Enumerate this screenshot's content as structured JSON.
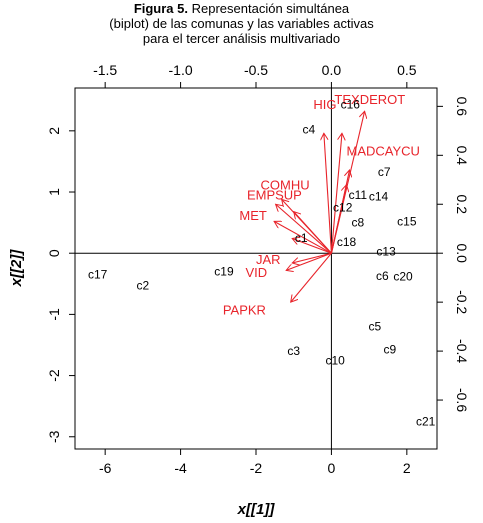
{
  "figure": {
    "label": "Figura 5.",
    "title_line1": "Representación simultánea",
    "title_line2": "(biplot) de las comunas y las variables activas",
    "title_line3": "para el tercer análisis multivariado"
  },
  "chart_data": {
    "type": "scatter",
    "subtype": "biplot",
    "xlabel": "x[[1]]",
    "ylabel": "x[[2]]",
    "xlim": [
      -6.8,
      2.8
    ],
    "ylim": [
      -3.2,
      2.7
    ],
    "x_ticks": [
      -6,
      -4,
      -2,
      0,
      2
    ],
    "y_ticks": [
      -3,
      -2,
      -1,
      0,
      1,
      2
    ],
    "top_axis": {
      "lim": [
        -1.7,
        0.7
      ],
      "ticks": [
        "-1.5",
        "-1.0",
        "-0.5",
        "0.0",
        "0.5"
      ],
      "tick_values": [
        -1.5,
        -1.0,
        -0.5,
        0.0,
        0.5
      ]
    },
    "right_axis": {
      "lim": [
        -0.8,
        0.675
      ],
      "ticks": [
        "0.6",
        "0.4",
        "0.2",
        "0.0",
        "-0.2",
        "-0.4",
        "-0.6"
      ],
      "tick_values": [
        0.6,
        0.4,
        0.2,
        0.0,
        -0.2,
        -0.4,
        -0.6
      ]
    },
    "reference_lines": {
      "x": 0,
      "y": 0
    },
    "points": [
      {
        "label": "c1",
        "x": -0.8,
        "y": 0.25
      },
      {
        "label": "c2",
        "x": -5.0,
        "y": -0.53
      },
      {
        "label": "c3",
        "x": -1.0,
        "y": -1.6
      },
      {
        "label": "c4",
        "x": -0.6,
        "y": 2.02
      },
      {
        "label": "c5",
        "x": 1.15,
        "y": -1.2
      },
      {
        "label": "c6",
        "x": 1.35,
        "y": -0.37
      },
      {
        "label": "c7",
        "x": 1.4,
        "y": 1.33
      },
      {
        "label": "c8",
        "x": 0.7,
        "y": 0.5
      },
      {
        "label": "c9",
        "x": 1.55,
        "y": -1.57
      },
      {
        "label": "c10",
        "x": 0.1,
        "y": -1.75
      },
      {
        "label": "c11",
        "x": 0.7,
        "y": 0.95
      },
      {
        "label": "c12",
        "x": 0.3,
        "y": 0.75
      },
      {
        "label": "c13",
        "x": 1.45,
        "y": 0.03
      },
      {
        "label": "c14",
        "x": 1.25,
        "y": 0.93
      },
      {
        "label": "c15",
        "x": 2.0,
        "y": 0.52
      },
      {
        "label": "c16",
        "x": 0.5,
        "y": 2.43
      },
      {
        "label": "c17",
        "x": -6.2,
        "y": -0.35
      },
      {
        "label": "c18",
        "x": 0.4,
        "y": 0.18
      },
      {
        "label": "c19",
        "x": -2.85,
        "y": -0.3
      },
      {
        "label": "c20",
        "x": 1.9,
        "y": -0.38
      },
      {
        "label": "c21",
        "x": 2.5,
        "y": -2.75
      }
    ],
    "vectors": [
      {
        "label": "TEXDEROT",
        "x": 0.22,
        "y": 0.58,
        "lx": 0.02,
        "ly": 0.61
      },
      {
        "label": "HIG",
        "x": -0.05,
        "y": 0.49,
        "lx": -0.12,
        "ly": 0.59
      },
      {
        "label": "MADCAYCU",
        "x": 0.07,
        "y": 0.49,
        "lx": 0.1,
        "ly": 0.4
      },
      {
        "label": "COMHU",
        "x": -0.33,
        "y": 0.22,
        "lx": -0.47,
        "ly": 0.26
      },
      {
        "label": "EMPSUP",
        "x": -0.37,
        "y": 0.2,
        "lx": -0.56,
        "ly": 0.22
      },
      {
        "label": "MET",
        "x": -0.38,
        "y": 0.13,
        "lx": -0.61,
        "ly": 0.135
      },
      {
        "label": "JAR",
        "x": -0.26,
        "y": -0.04,
        "lx": -0.5,
        "ly": -0.045
      },
      {
        "label": "VID",
        "x": -0.3,
        "y": -0.07,
        "lx": -0.57,
        "ly": -0.097
      },
      {
        "label": "PAPKR",
        "x": -0.27,
        "y": -0.2,
        "lx": -0.72,
        "ly": -0.25
      },
      {
        "label": "",
        "x": 0.12,
        "y": 0.34
      },
      {
        "label": "",
        "x": 0.1,
        "y": 0.28
      },
      {
        "label": "",
        "x": -0.25,
        "y": 0.17
      },
      {
        "label": "",
        "x": -0.26,
        "y": 0.06
      }
    ],
    "colors": {
      "vector": "#e8242b",
      "point_label": "#000000",
      "axis": "#000000"
    }
  }
}
